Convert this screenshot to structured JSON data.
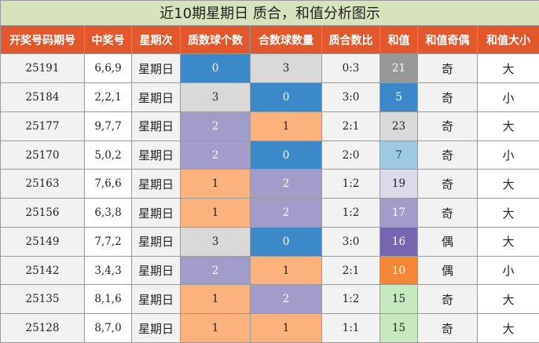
{
  "title": "近10期星期日 质合，和值分析图示",
  "headers": [
    "开奖号码期号",
    "中奖号",
    "星期次",
    "质数球个数",
    "合数球数量",
    "质合数比",
    "和值",
    "和值奇偶",
    "和值大小"
  ],
  "colors": {
    "title_bg": "#d6e3bc",
    "header_bg": "#e2572b",
    "blue": "#3b89c9",
    "gray": "#d9d9d9",
    "purple": "#a29ccb",
    "orange": "#fbb27c",
    "sum_colors": {
      "21": "#989898",
      "5": "#3b89c9",
      "23": "#d9d9d9",
      "7": "#9ecae1",
      "19": "#dadaeb",
      "17": "#a29ccb",
      "16": "#7766af",
      "10": "#f48735",
      "15": "#c7e9c0"
    }
  },
  "rows": [
    {
      "period": "25191",
      "numbers": "6,6,9",
      "weekday": "星期日",
      "prime_count": "0",
      "composite_count": "3",
      "ratio": "0:3",
      "sum": "21",
      "parity": "奇",
      "size": "大"
    },
    {
      "period": "25184",
      "numbers": "2,2,1",
      "weekday": "星期日",
      "prime_count": "3",
      "composite_count": "0",
      "ratio": "3:0",
      "sum": "5",
      "parity": "奇",
      "size": "小"
    },
    {
      "period": "25177",
      "numbers": "9,7,7",
      "weekday": "星期日",
      "prime_count": "2",
      "composite_count": "1",
      "ratio": "2:1",
      "sum": "23",
      "parity": "奇",
      "size": "大"
    },
    {
      "period": "25170",
      "numbers": "5,0,2",
      "weekday": "星期日",
      "prime_count": "2",
      "composite_count": "0",
      "ratio": "2:0",
      "sum": "7",
      "parity": "奇",
      "size": "小"
    },
    {
      "period": "25163",
      "numbers": "7,6,6",
      "weekday": "星期日",
      "prime_count": "1",
      "composite_count": "2",
      "ratio": "1:2",
      "sum": "19",
      "parity": "奇",
      "size": "大"
    },
    {
      "period": "25156",
      "numbers": "6,3,8",
      "weekday": "星期日",
      "prime_count": "1",
      "composite_count": "2",
      "ratio": "1:2",
      "sum": "17",
      "parity": "奇",
      "size": "大"
    },
    {
      "period": "25149",
      "numbers": "7,7,2",
      "weekday": "星期日",
      "prime_count": "3",
      "composite_count": "0",
      "ratio": "3:0",
      "sum": "16",
      "parity": "偶",
      "size": "大"
    },
    {
      "period": "25142",
      "numbers": "3,4,3",
      "weekday": "星期日",
      "prime_count": "2",
      "composite_count": "1",
      "ratio": "2:1",
      "sum": "10",
      "parity": "偶",
      "size": "小"
    },
    {
      "period": "25135",
      "numbers": "8,1,6",
      "weekday": "星期日",
      "prime_count": "1",
      "composite_count": "2",
      "ratio": "1:2",
      "sum": "15",
      "parity": "奇",
      "size": "大"
    },
    {
      "period": "25128",
      "numbers": "8,7,0",
      "weekday": "星期日",
      "prime_count": "1",
      "composite_count": "1",
      "ratio": "1:1",
      "sum": "15",
      "parity": "奇",
      "size": "大"
    }
  ]
}
